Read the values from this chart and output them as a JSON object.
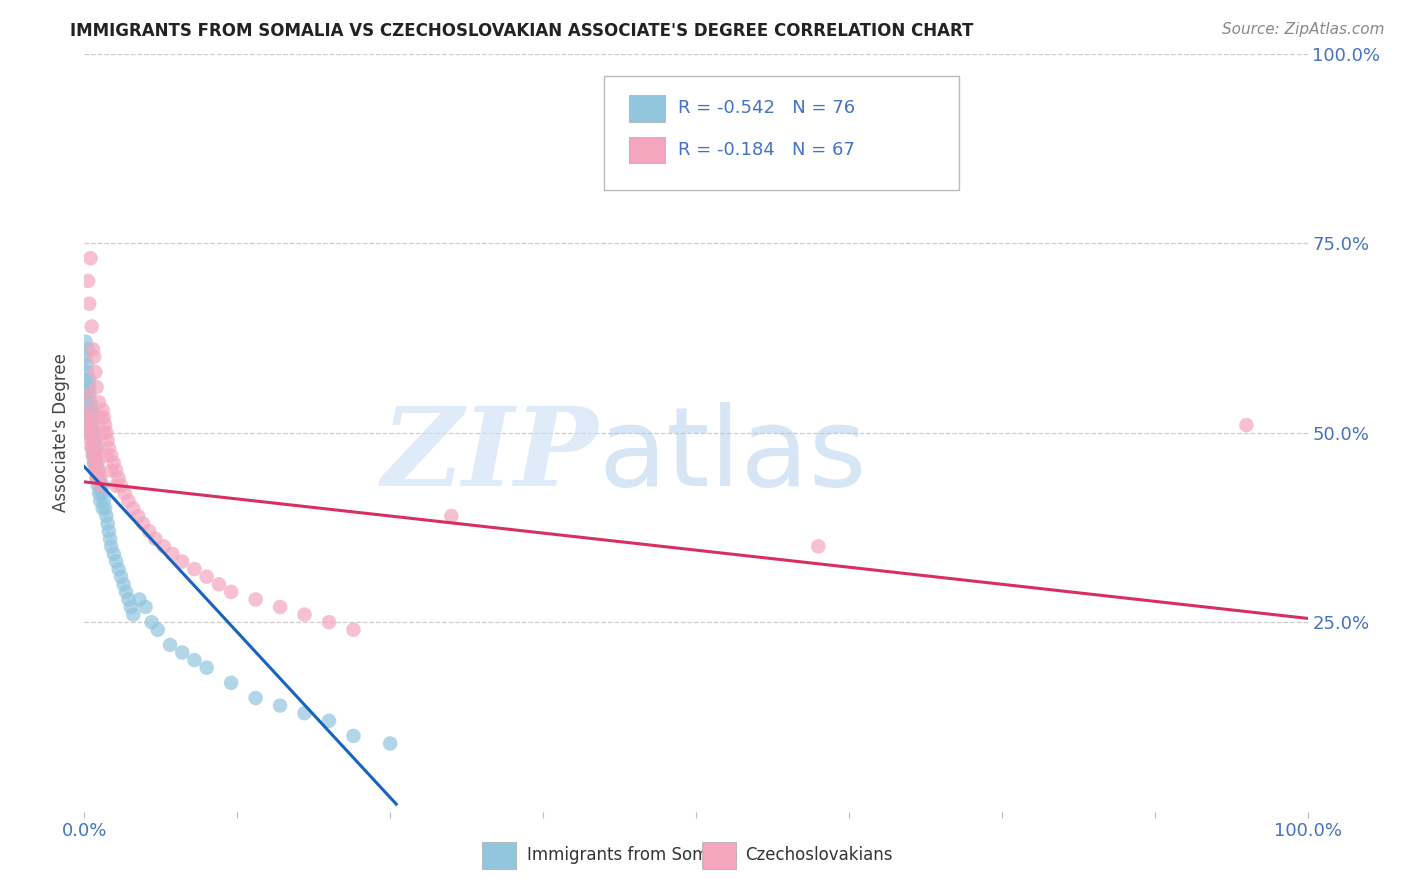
{
  "title": "IMMIGRANTS FROM SOMALIA VS CZECHOSLOVAKIAN ASSOCIATE'S DEGREE CORRELATION CHART",
  "source": "Source: ZipAtlas.com",
  "ylabel": "Associate's Degree",
  "xlim": [
    0,
    1.0
  ],
  "ylim": [
    0,
    1.0
  ],
  "legend_r1": "-0.542",
  "legend_n1": "76",
  "legend_r2": "-0.184",
  "legend_n2": "67",
  "legend_label1": "Immigrants from Somalia",
  "legend_label2": "Czechoslovakians",
  "color_blue": "#92c5de",
  "color_pink": "#f4a6be",
  "color_blue_line": "#1565c0",
  "color_pink_line": "#d63060",
  "color_text_blue": "#4472c4",
  "somalia_x": [
    0.001,
    0.001,
    0.002,
    0.002,
    0.002,
    0.003,
    0.003,
    0.003,
    0.004,
    0.004,
    0.004,
    0.004,
    0.005,
    0.005,
    0.005,
    0.006,
    0.006,
    0.006,
    0.007,
    0.007,
    0.007,
    0.007,
    0.008,
    0.008,
    0.008,
    0.009,
    0.009,
    0.009,
    0.01,
    0.01,
    0.01,
    0.011,
    0.011,
    0.012,
    0.012,
    0.013,
    0.013,
    0.014,
    0.015,
    0.015,
    0.016,
    0.017,
    0.018,
    0.019,
    0.02,
    0.021,
    0.022,
    0.024,
    0.026,
    0.028,
    0.03,
    0.032,
    0.034,
    0.036,
    0.038,
    0.04,
    0.045,
    0.05,
    0.055,
    0.06,
    0.07,
    0.08,
    0.09,
    0.1,
    0.12,
    0.14,
    0.16,
    0.18,
    0.2,
    0.22,
    0.25,
    0.001,
    0.002,
    0.003,
    0.004,
    0.005
  ],
  "somalia_y": [
    0.55,
    0.6,
    0.57,
    0.52,
    0.58,
    0.54,
    0.56,
    0.5,
    0.53,
    0.55,
    0.51,
    0.57,
    0.52,
    0.54,
    0.5,
    0.51,
    0.53,
    0.48,
    0.5,
    0.52,
    0.47,
    0.49,
    0.48,
    0.46,
    0.5,
    0.47,
    0.45,
    0.49,
    0.46,
    0.44,
    0.48,
    0.45,
    0.43,
    0.44,
    0.42,
    0.43,
    0.41,
    0.42,
    0.4,
    0.43,
    0.41,
    0.4,
    0.39,
    0.38,
    0.37,
    0.36,
    0.35,
    0.34,
    0.33,
    0.32,
    0.31,
    0.3,
    0.29,
    0.28,
    0.27,
    0.26,
    0.28,
    0.27,
    0.25,
    0.24,
    0.22,
    0.21,
    0.2,
    0.19,
    0.17,
    0.15,
    0.14,
    0.13,
    0.12,
    0.1,
    0.09,
    0.62,
    0.59,
    0.61,
    0.56,
    0.53
  ],
  "czech_x": [
    0.002,
    0.003,
    0.004,
    0.004,
    0.005,
    0.005,
    0.006,
    0.006,
    0.007,
    0.007,
    0.008,
    0.008,
    0.009,
    0.009,
    0.01,
    0.01,
    0.011,
    0.012,
    0.013,
    0.014,
    0.015,
    0.016,
    0.017,
    0.018,
    0.019,
    0.02,
    0.022,
    0.024,
    0.026,
    0.028,
    0.03,
    0.033,
    0.036,
    0.04,
    0.044,
    0.048,
    0.053,
    0.058,
    0.065,
    0.072,
    0.08,
    0.09,
    0.1,
    0.11,
    0.12,
    0.14,
    0.16,
    0.18,
    0.2,
    0.22,
    0.003,
    0.004,
    0.005,
    0.006,
    0.007,
    0.008,
    0.009,
    0.01,
    0.012,
    0.014,
    0.016,
    0.018,
    0.022,
    0.026,
    0.3,
    0.95,
    0.6
  ],
  "czech_y": [
    0.51,
    0.53,
    0.5,
    0.55,
    0.49,
    0.52,
    0.48,
    0.51,
    0.5,
    0.47,
    0.49,
    0.46,
    0.48,
    0.45,
    0.47,
    0.44,
    0.46,
    0.45,
    0.44,
    0.43,
    0.53,
    0.52,
    0.51,
    0.5,
    0.49,
    0.48,
    0.47,
    0.46,
    0.45,
    0.44,
    0.43,
    0.42,
    0.41,
    0.4,
    0.39,
    0.38,
    0.37,
    0.36,
    0.35,
    0.34,
    0.33,
    0.32,
    0.31,
    0.3,
    0.29,
    0.28,
    0.27,
    0.26,
    0.25,
    0.24,
    0.7,
    0.67,
    0.73,
    0.64,
    0.61,
    0.6,
    0.58,
    0.56,
    0.54,
    0.52,
    0.5,
    0.47,
    0.45,
    0.43,
    0.39,
    0.51,
    0.35
  ],
  "somalia_line_x0": 0.0,
  "somalia_line_y0": 0.455,
  "somalia_line_x1": 0.255,
  "somalia_line_y1": 0.01,
  "czech_line_x0": 0.0,
  "czech_line_y0": 0.435,
  "czech_line_x1": 1.0,
  "czech_line_y1": 0.255
}
